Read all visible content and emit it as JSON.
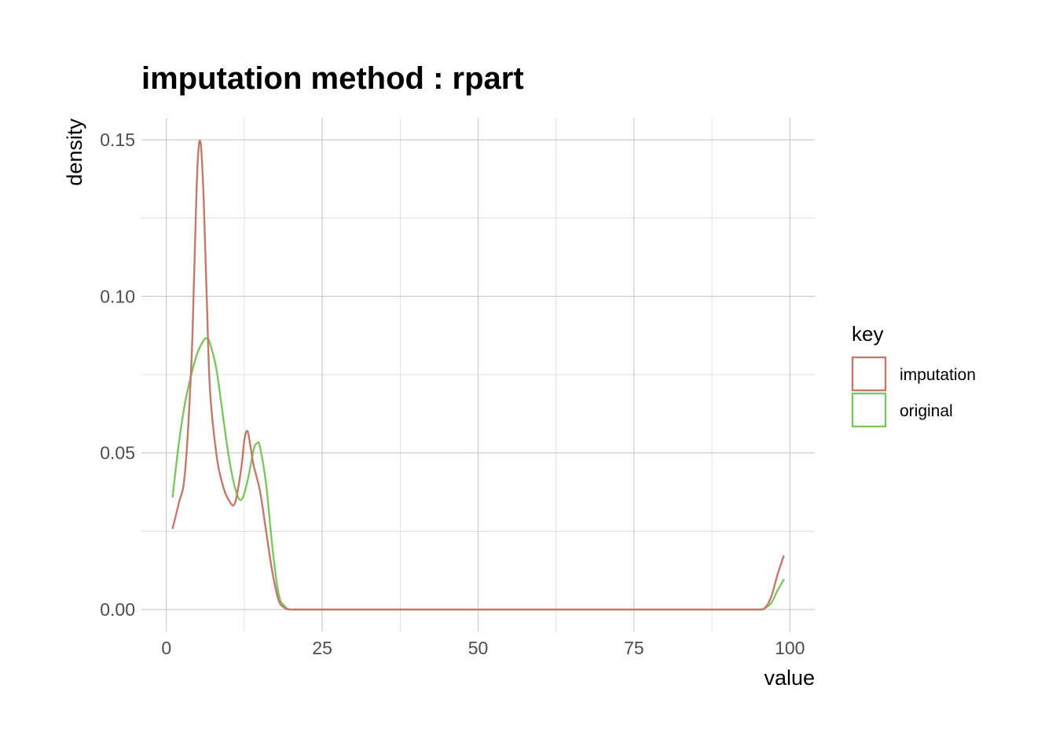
{
  "chart_data": {
    "type": "line",
    "title": "imputation method : rpart",
    "xlabel": "value",
    "ylabel": "density",
    "xlim": [
      -4,
      104
    ],
    "ylim": [
      -0.007,
      0.157
    ],
    "x_ticks": [
      0,
      25,
      50,
      75,
      100
    ],
    "x_tick_labels": [
      "0",
      "25",
      "50",
      "75",
      "100"
    ],
    "y_ticks": [
      0.0,
      0.05,
      0.1,
      0.15
    ],
    "y_tick_labels": [
      "0.00",
      "0.05",
      "0.10",
      "0.15"
    ],
    "x_minor_ticks": [
      12.5,
      37.5,
      62.5,
      87.5
    ],
    "y_minor_ticks": [
      0.025,
      0.075,
      0.125
    ],
    "grid": true,
    "legend": {
      "title": "key",
      "position": "right",
      "entries": [
        "imputation",
        "original"
      ]
    },
    "series": [
      {
        "name": "imputation",
        "color": "#c17a6b",
        "x": [
          1,
          2,
          3,
          4,
          4.5,
          5,
          5.5,
          6,
          6.5,
          7,
          8,
          9,
          10,
          11,
          12,
          12.5,
          13,
          13.5,
          14,
          15,
          16,
          17,
          18,
          19,
          20,
          22,
          30,
          50,
          70,
          90,
          95,
          96,
          97,
          98,
          99
        ],
        "y": [
          0.026,
          0.034,
          0.044,
          0.078,
          0.11,
          0.142,
          0.149,
          0.13,
          0.098,
          0.07,
          0.05,
          0.04,
          0.035,
          0.034,
          0.045,
          0.054,
          0.057,
          0.052,
          0.046,
          0.038,
          0.025,
          0.012,
          0.003,
          0.0005,
          0.0,
          0.0,
          0.0,
          0.0,
          0.0,
          0.0,
          0.0,
          0.0005,
          0.004,
          0.011,
          0.017
        ]
      },
      {
        "name": "original",
        "color": "#7ec661",
        "x": [
          1,
          2,
          3,
          4,
          5,
          6,
          6.5,
          7,
          8,
          9,
          10,
          11,
          12,
          13,
          14,
          14.5,
          15,
          16,
          17,
          18,
          19,
          20,
          22,
          30,
          50,
          70,
          90,
          95,
          96,
          97,
          98,
          99
        ],
        "y": [
          0.036,
          0.053,
          0.066,
          0.075,
          0.082,
          0.086,
          0.0865,
          0.085,
          0.077,
          0.063,
          0.049,
          0.039,
          0.035,
          0.041,
          0.051,
          0.053,
          0.052,
          0.04,
          0.02,
          0.005,
          0.001,
          0.0,
          0.0,
          0.0,
          0.0,
          0.0,
          0.0,
          0.0,
          0.0005,
          0.002,
          0.006,
          0.0095
        ]
      }
    ]
  }
}
